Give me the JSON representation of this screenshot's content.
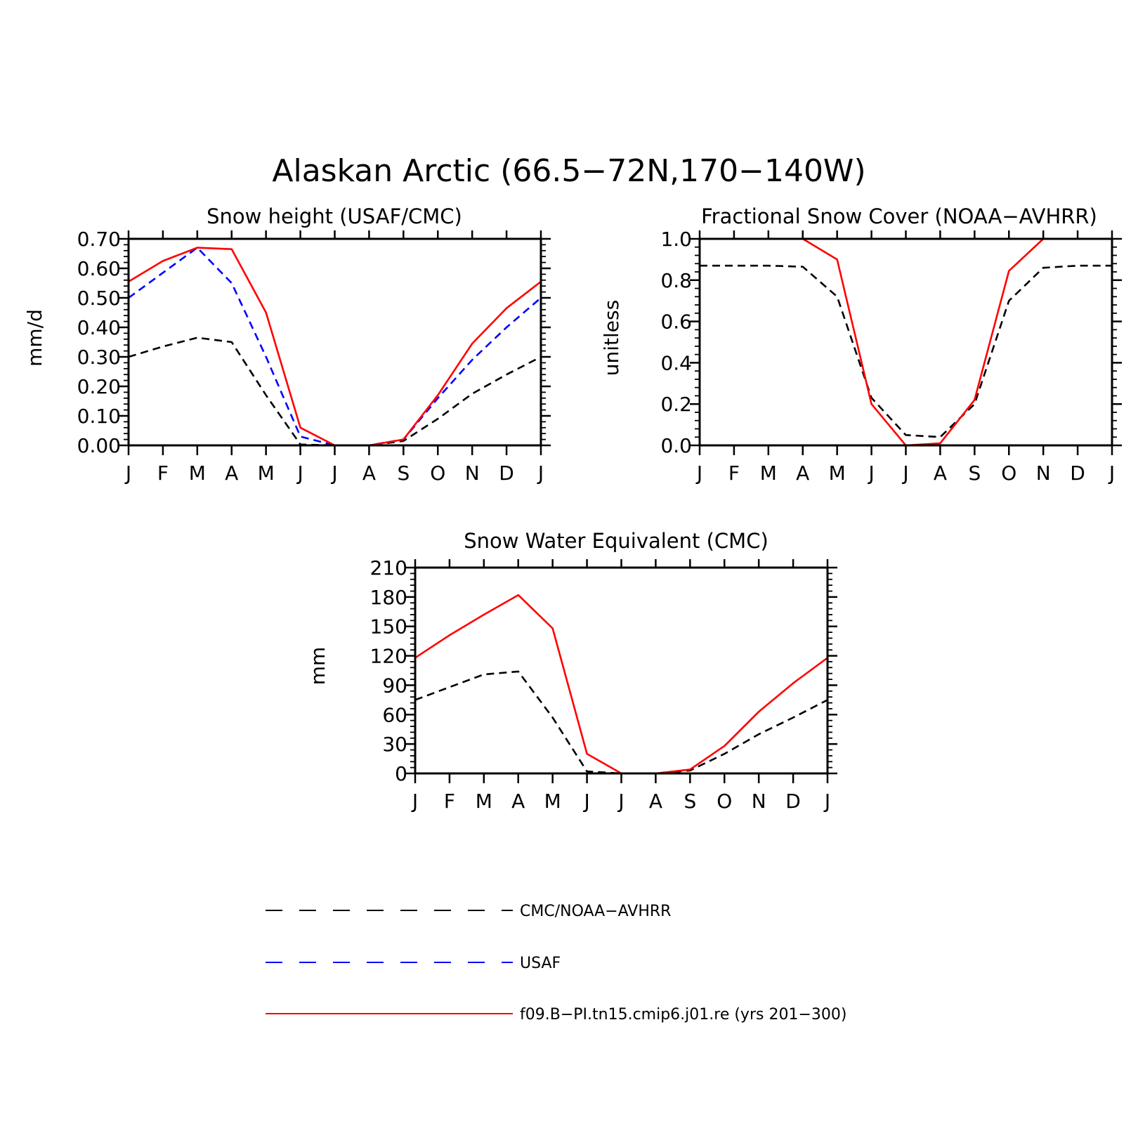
{
  "figure": {
    "title": "Alaskan Arctic (66.5−72N,170−140W)"
  },
  "months": [
    "J",
    "F",
    "M",
    "A",
    "M",
    "J",
    "J",
    "A",
    "S",
    "O",
    "N",
    "D",
    "J"
  ],
  "colors": {
    "obs": "#000000",
    "usaf": "#0000ff",
    "model": "#ff0000",
    "axis": "#000000"
  },
  "legend": [
    {
      "label": "CMC/NOAA−AVHRR",
      "color": "#000000",
      "style": "dashed"
    },
    {
      "label": "USAF",
      "color": "#0000ff",
      "style": "dashed"
    },
    {
      "label": "f09.B−PI.tn15.cmip6.j01.re (yrs 201−300)",
      "color": "#ff0000",
      "style": "solid"
    }
  ],
  "chart_data": [
    {
      "type": "line",
      "title": "Snow height (USAF/CMC)",
      "ylabel": "mm/d",
      "xlabel": "",
      "categories": [
        "J",
        "F",
        "M",
        "A",
        "M",
        "J",
        "J",
        "A",
        "S",
        "O",
        "N",
        "D",
        "J"
      ],
      "ylim": [
        0,
        0.7
      ],
      "yticks": [
        "0.00",
        "0.10",
        "0.20",
        "0.30",
        "0.40",
        "0.50",
        "0.60",
        "0.70"
      ],
      "grid": false,
      "series": [
        {
          "name": "CMC/NOAA−AVHRR",
          "color": "#000000",
          "dash": true,
          "values": [
            0.3,
            0.335,
            0.365,
            0.35,
            0.17,
            0.003,
            0.0,
            0.0,
            0.015,
            0.09,
            0.175,
            0.24,
            0.3
          ]
        },
        {
          "name": "USAF",
          "color": "#0000ff",
          "dash": true,
          "values": [
            0.5,
            0.585,
            0.67,
            0.55,
            0.3,
            0.03,
            0.0,
            0.0,
            0.02,
            0.16,
            0.29,
            0.4,
            0.5
          ]
        },
        {
          "name": "f09.B−PI.tn15.cmip6.j01.re (yrs 201−300)",
          "color": "#ff0000",
          "dash": false,
          "values": [
            0.555,
            0.625,
            0.67,
            0.665,
            0.45,
            0.06,
            0.0,
            0.0,
            0.02,
            0.17,
            0.345,
            0.465,
            0.555
          ]
        }
      ]
    },
    {
      "type": "line",
      "title": "Fractional Snow Cover (NOAA−AVHRR)",
      "ylabel": "unitless",
      "xlabel": "",
      "categories": [
        "J",
        "F",
        "M",
        "A",
        "M",
        "J",
        "J",
        "A",
        "S",
        "O",
        "N",
        "D",
        "J"
      ],
      "ylim": [
        0,
        1.0
      ],
      "yticks": [
        "0.0",
        "0.2",
        "0.4",
        "0.6",
        "0.8",
        "1.0"
      ],
      "grid": false,
      "series": [
        {
          "name": "CMC/NOAA−AVHRR",
          "color": "#000000",
          "dash": true,
          "values": [
            0.87,
            0.87,
            0.87,
            0.865,
            0.72,
            0.23,
            0.05,
            0.04,
            0.2,
            0.7,
            0.86,
            0.87,
            0.87
          ]
        },
        {
          "name": "f09.B−PI.tn15.cmip6.j01.re (yrs 201−300)",
          "color": "#ff0000",
          "dash": false,
          "values": [
            1.0,
            1.0,
            1.0,
            1.0,
            0.9,
            0.2,
            0.0,
            0.01,
            0.22,
            0.845,
            1.0,
            1.0,
            1.0
          ]
        }
      ]
    },
    {
      "type": "line",
      "title": "Snow Water Equivalent (CMC)",
      "ylabel": "mm",
      "xlabel": "",
      "categories": [
        "J",
        "F",
        "M",
        "A",
        "M",
        "J",
        "J",
        "A",
        "S",
        "O",
        "N",
        "D",
        "J"
      ],
      "ylim": [
        0,
        210
      ],
      "yticks": [
        "0",
        "30",
        "60",
        "90",
        "120",
        "150",
        "180",
        "210"
      ],
      "grid": false,
      "series": [
        {
          "name": "CMC/NOAA−AVHRR",
          "color": "#000000",
          "dash": true,
          "values": [
            75,
            88,
            101,
            104,
            57,
            2,
            0,
            0,
            3,
            20,
            40,
            57,
            75
          ]
        },
        {
          "name": "f09.B−PI.tn15.cmip6.j01.re (yrs 201−300)",
          "color": "#ff0000",
          "dash": false,
          "values": [
            118,
            141,
            162,
            182,
            148,
            20,
            0,
            0,
            4,
            28,
            63,
            92,
            118
          ]
        }
      ]
    }
  ]
}
